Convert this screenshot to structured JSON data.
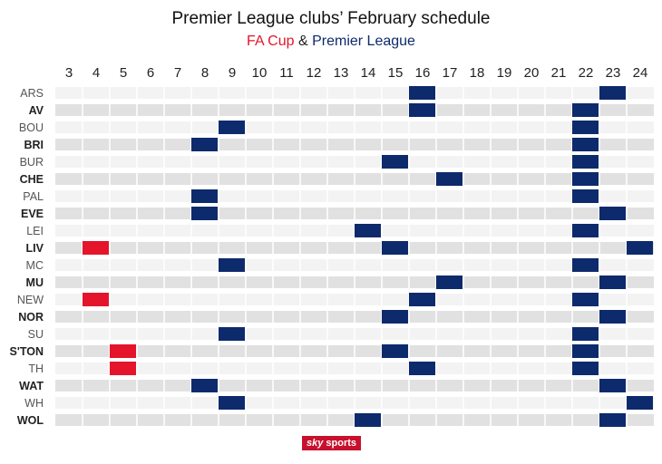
{
  "title": "Premier League clubs’ February schedule",
  "subtitle": {
    "fa_cup": "FA Cup",
    "amp": " & ",
    "premier_league": "Premier League"
  },
  "colors": {
    "fa_cup": "#e4142b",
    "premier_league": "#0d2a6c",
    "row_dark": "#e1e1e1",
    "row_light": "#f3f3f3"
  },
  "branding": {
    "sky": "sky",
    "sports": "sports"
  },
  "chart_data": {
    "type": "table",
    "days": [
      3,
      4,
      5,
      6,
      7,
      8,
      9,
      10,
      11,
      12,
      13,
      14,
      15,
      16,
      17,
      18,
      19,
      20,
      21,
      22,
      23,
      24
    ],
    "clubs": [
      {
        "name": "ARS",
        "bold": false,
        "matches": [
          {
            "day": 16,
            "competition": "Premier League"
          },
          {
            "day": 23,
            "competition": "Premier League"
          }
        ]
      },
      {
        "name": "AV",
        "bold": true,
        "matches": [
          {
            "day": 16,
            "competition": "Premier League"
          },
          {
            "day": 22,
            "competition": "Premier League"
          }
        ]
      },
      {
        "name": "BOU",
        "bold": false,
        "matches": [
          {
            "day": 9,
            "competition": "Premier League"
          },
          {
            "day": 22,
            "competition": "Premier League"
          }
        ]
      },
      {
        "name": "BRI",
        "bold": true,
        "matches": [
          {
            "day": 8,
            "competition": "Premier League"
          },
          {
            "day": 22,
            "competition": "Premier League"
          }
        ]
      },
      {
        "name": "BUR",
        "bold": false,
        "matches": [
          {
            "day": 15,
            "competition": "Premier League"
          },
          {
            "day": 22,
            "competition": "Premier League"
          }
        ]
      },
      {
        "name": "CHE",
        "bold": true,
        "matches": [
          {
            "day": 17,
            "competition": "Premier League"
          },
          {
            "day": 22,
            "competition": "Premier League"
          }
        ]
      },
      {
        "name": "PAL",
        "bold": false,
        "matches": [
          {
            "day": 8,
            "competition": "Premier League"
          },
          {
            "day": 22,
            "competition": "Premier League"
          }
        ]
      },
      {
        "name": "EVE",
        "bold": true,
        "matches": [
          {
            "day": 8,
            "competition": "Premier League"
          },
          {
            "day": 23,
            "competition": "Premier League"
          }
        ]
      },
      {
        "name": "LEI",
        "bold": false,
        "matches": [
          {
            "day": 14,
            "competition": "Premier League"
          },
          {
            "day": 22,
            "competition": "Premier League"
          }
        ]
      },
      {
        "name": "LIV",
        "bold": true,
        "matches": [
          {
            "day": 4,
            "competition": "FA Cup"
          },
          {
            "day": 15,
            "competition": "Premier League"
          },
          {
            "day": 24,
            "competition": "Premier League"
          }
        ]
      },
      {
        "name": "MC",
        "bold": false,
        "matches": [
          {
            "day": 9,
            "competition": "Premier League"
          },
          {
            "day": 22,
            "competition": "Premier League"
          }
        ]
      },
      {
        "name": "MU",
        "bold": true,
        "matches": [
          {
            "day": 17,
            "competition": "Premier League"
          },
          {
            "day": 23,
            "competition": "Premier League"
          }
        ]
      },
      {
        "name": "NEW",
        "bold": false,
        "matches": [
          {
            "day": 4,
            "competition": "FA Cup"
          },
          {
            "day": 16,
            "competition": "Premier League"
          },
          {
            "day": 22,
            "competition": "Premier League"
          }
        ]
      },
      {
        "name": "NOR",
        "bold": true,
        "matches": [
          {
            "day": 15,
            "competition": "Premier League"
          },
          {
            "day": 23,
            "competition": "Premier League"
          }
        ]
      },
      {
        "name": "SU",
        "bold": false,
        "matches": [
          {
            "day": 9,
            "competition": "Premier League"
          },
          {
            "day": 22,
            "competition": "Premier League"
          }
        ]
      },
      {
        "name": "S'TON",
        "bold": true,
        "matches": [
          {
            "day": 5,
            "competition": "FA Cup"
          },
          {
            "day": 15,
            "competition": "Premier League"
          },
          {
            "day": 22,
            "competition": "Premier League"
          }
        ]
      },
      {
        "name": "TH",
        "bold": false,
        "matches": [
          {
            "day": 5,
            "competition": "FA Cup"
          },
          {
            "day": 16,
            "competition": "Premier League"
          },
          {
            "day": 22,
            "competition": "Premier League"
          }
        ]
      },
      {
        "name": "WAT",
        "bold": true,
        "matches": [
          {
            "day": 8,
            "competition": "Premier League"
          },
          {
            "day": 23,
            "competition": "Premier League"
          }
        ]
      },
      {
        "name": "WH",
        "bold": false,
        "matches": [
          {
            "day": 9,
            "competition": "Premier League"
          },
          {
            "day": 24,
            "competition": "Premier League"
          }
        ]
      },
      {
        "name": "WOL",
        "bold": true,
        "matches": [
          {
            "day": 14,
            "competition": "Premier League"
          },
          {
            "day": 23,
            "competition": "Premier League"
          }
        ]
      }
    ]
  }
}
